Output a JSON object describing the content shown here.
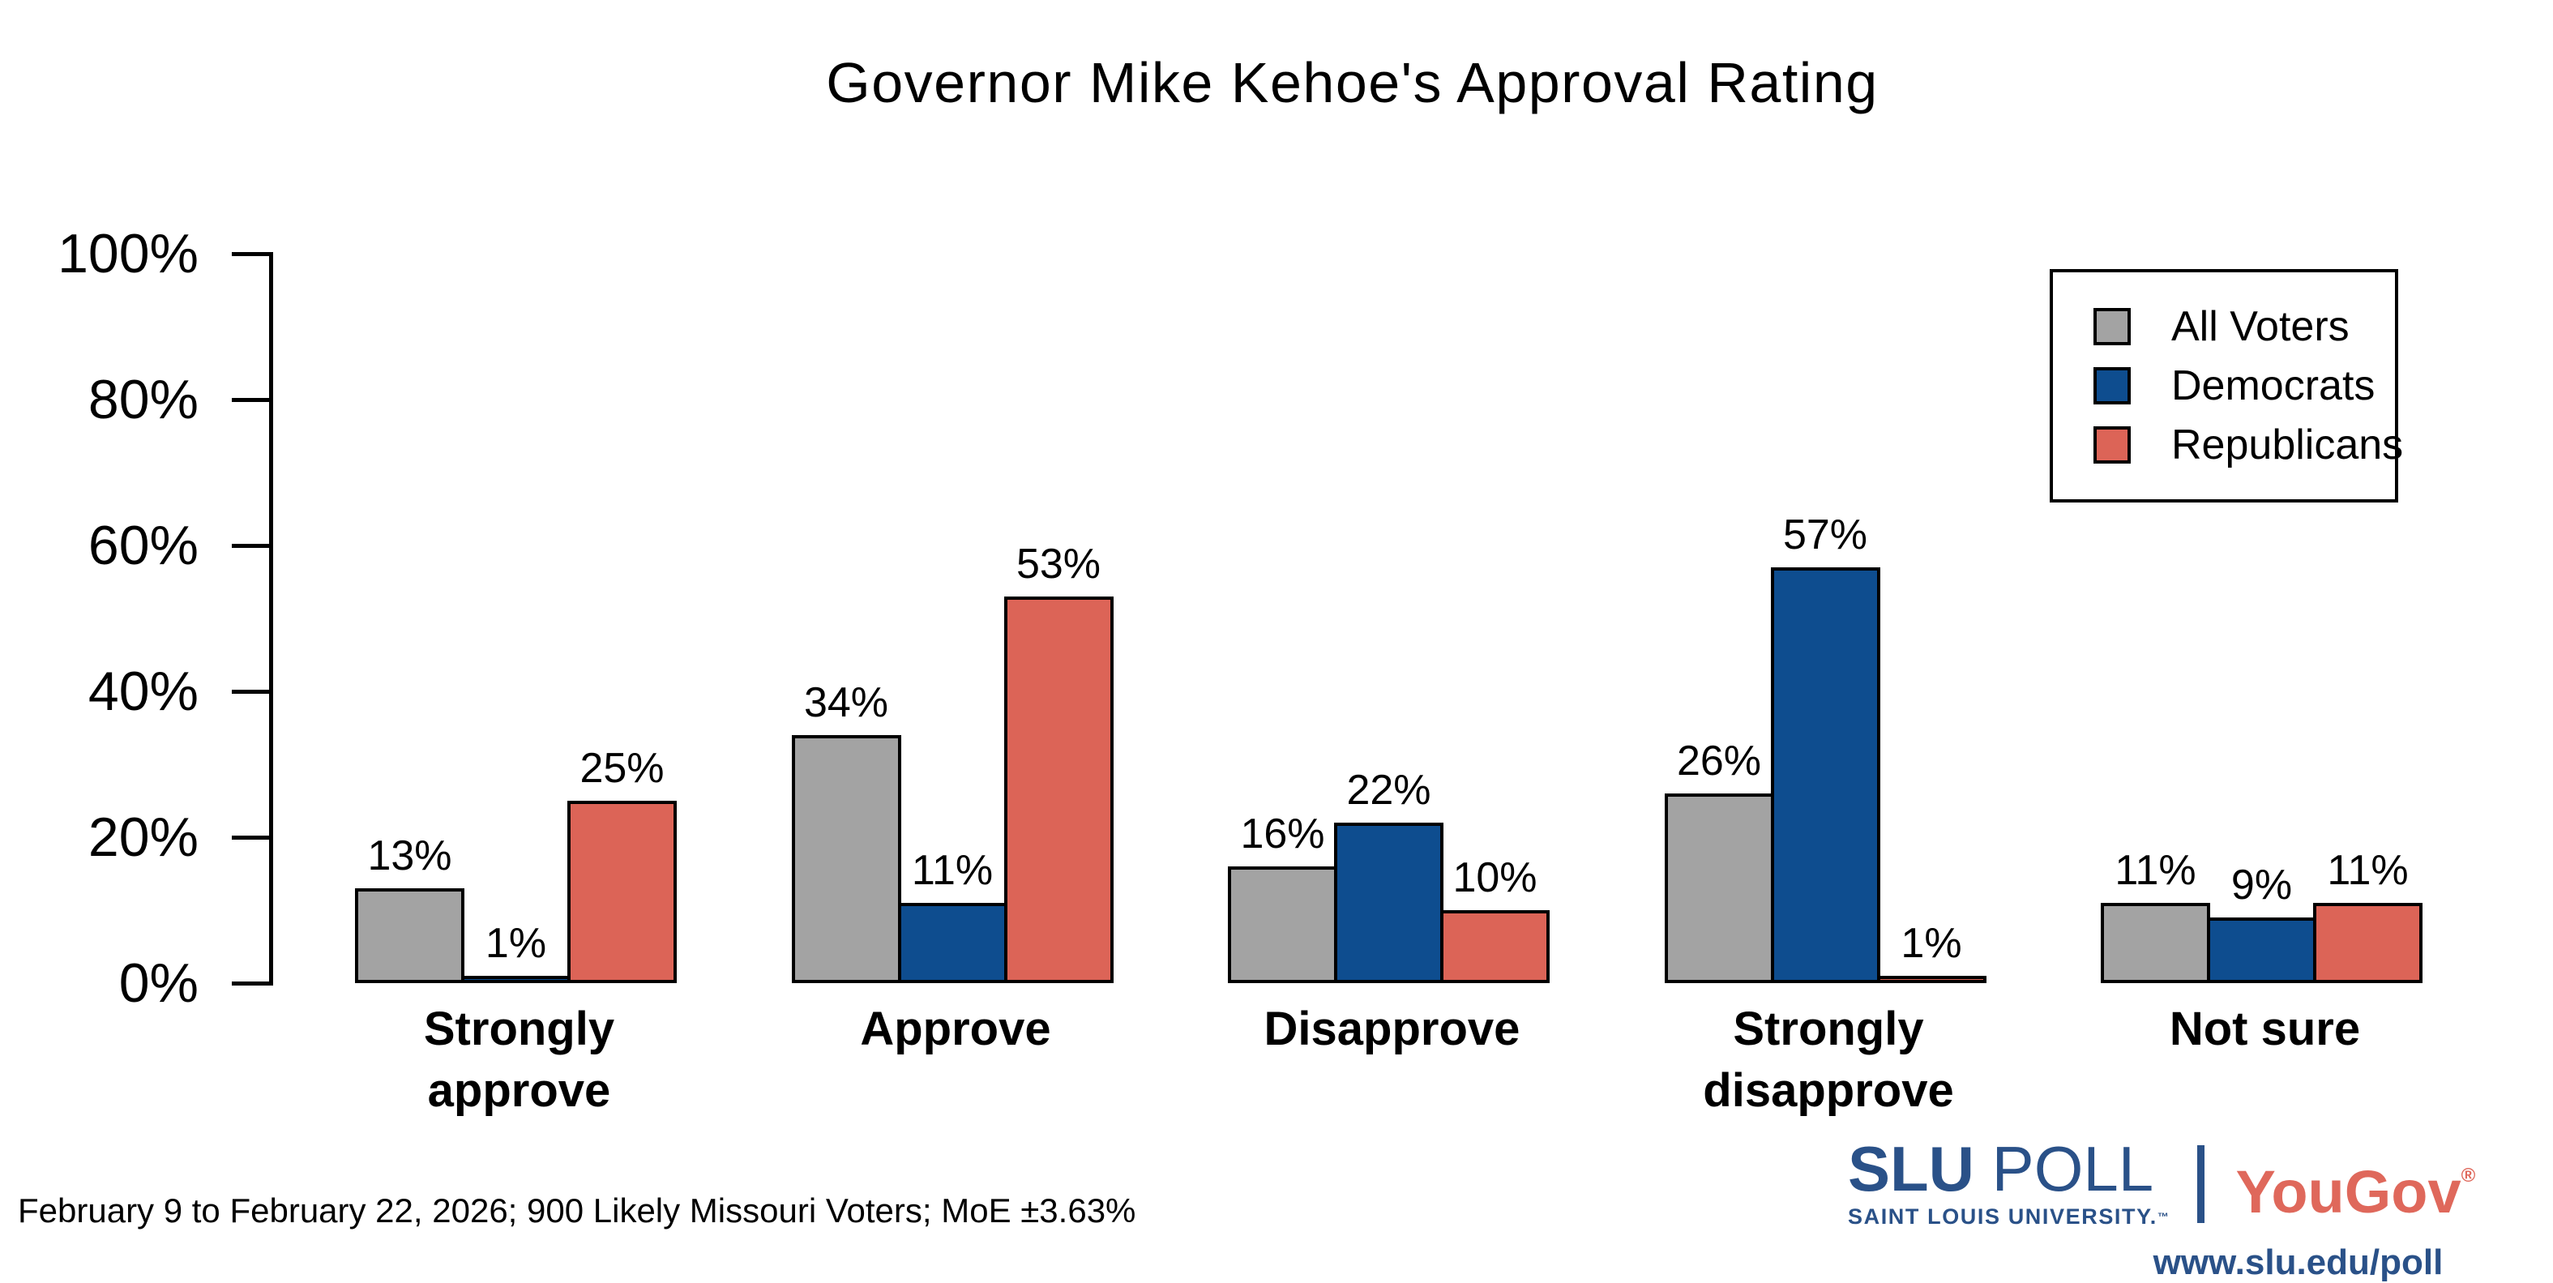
{
  "title": "Governor Mike Kehoe's Approval Rating",
  "legend": {
    "items": [
      {
        "label": "All Voters",
        "color": "#A3A3A3"
      },
      {
        "label": "Democrats",
        "color": "#0E4D8F"
      },
      {
        "label": "Republicans",
        "color": "#DC6457"
      }
    ]
  },
  "chart_data": {
    "type": "bar",
    "title": "Governor Mike Kehoe's Approval Rating",
    "categories": [
      "Strongly approve",
      "Approve",
      "Disapprove",
      "Strongly disapprove",
      "Not sure"
    ],
    "category_lines": [
      [
        "Strongly",
        "approve"
      ],
      [
        "Approve"
      ],
      [
        "Disapprove"
      ],
      [
        "Strongly",
        "disapprove"
      ],
      [
        "Not sure"
      ]
    ],
    "series": [
      {
        "name": "All Voters",
        "color": "#A3A3A3",
        "values": [
          13,
          34,
          16,
          26,
          11
        ]
      },
      {
        "name": "Democrats",
        "color": "#0E4D8F",
        "values": [
          1,
          11,
          22,
          57,
          9
        ]
      },
      {
        "name": "Republicans",
        "color": "#DC6457",
        "values": [
          25,
          53,
          10,
          1,
          11
        ]
      }
    ],
    "value_suffix": "%",
    "xlabel": "",
    "ylabel": "",
    "ylim": [
      0,
      100
    ],
    "y_ticks": [
      "0%",
      "20%",
      "40%",
      "60%",
      "80%",
      "100%"
    ],
    "grid": false,
    "legend_position": "top-right",
    "bar_outline_color": "#000000"
  },
  "footer": {
    "source": "February 9 to February 22, 2026; 900 Likely Missouri Voters; MoE ±3.63%"
  },
  "branding": {
    "slu_bold": "SLU",
    "slu_light": " POLL",
    "slu_subtitle": "SAINT LOUIS UNIVERSITY.",
    "slu_tm": "™",
    "yougov": "YouGov",
    "yougov_reg": "®",
    "url": "www.slu.edu/poll",
    "slu_blue": "#2A5188",
    "yougov_red": "#DF685B"
  }
}
